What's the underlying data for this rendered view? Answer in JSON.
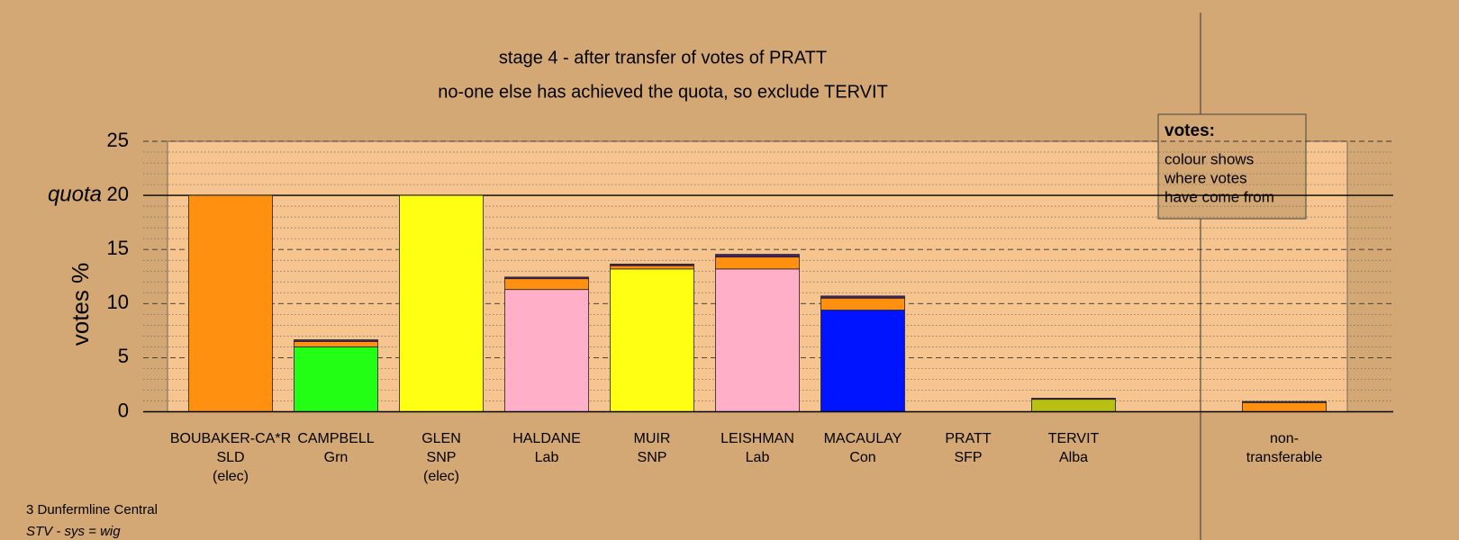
{
  "chart_data": {
    "type": "stacked-bar",
    "title": "stage 4 - after transfer of votes of PRATT",
    "subtitle": "no-one else has achieved the quota, so exclude TERVIT",
    "ylabel": "votes %",
    "categories": [
      [
        "BOUBAKER-CA*R",
        "SLD",
        "(elec)"
      ],
      [
        "CAMPBELL",
        "Grn"
      ],
      [
        "GLEN",
        "SNP",
        "(elec)"
      ],
      [
        "HALDANE",
        "Lab"
      ],
      [
        "MUIR",
        "SNP"
      ],
      [
        "LEISHMAN",
        "Lab"
      ],
      [
        "MACAULAY",
        "Con"
      ],
      [
        "PRATT",
        "SFP"
      ],
      [
        "TERVIT",
        "Alba"
      ],
      [
        "non-",
        "transferable"
      ]
    ],
    "series": [
      {
        "colors": [
          "#ff9010",
          "#22ff14",
          "#ffff14",
          "#ffb0c8",
          "#ffff14",
          "#ffb0c8",
          "#0014ff",
          "#6a2b80",
          "#b8c014",
          "#ff9010"
        ],
        "values": [
          20,
          6.0,
          20,
          11.3,
          13.2,
          13.2,
          9.4,
          0,
          1.15,
          0
        ]
      },
      {
        "color": "#ff9010",
        "values": [
          0,
          0.5,
          0,
          1.0,
          0.3,
          1.1,
          1.1,
          0,
          0,
          0.85
        ]
      },
      {
        "color": "#4a1f6a",
        "values": [
          0,
          0.15,
          0,
          0.15,
          0.15,
          0.25,
          0.2,
          0,
          0.1,
          0.1
        ]
      }
    ],
    "ylim": [
      0,
      25
    ],
    "yticks": [
      0,
      5,
      10,
      15,
      20,
      25
    ],
    "minor_yticks": [
      1,
      2,
      3,
      4,
      6,
      7,
      8,
      9,
      11,
      12,
      13,
      14,
      16,
      17,
      18,
      19,
      21,
      22,
      23,
      24
    ],
    "quota": {
      "value": 20,
      "label": "quota"
    },
    "grid": true,
    "legend_box": {
      "title": "votes:",
      "text": [
        "colour shows",
        "where votes",
        "have come from"
      ]
    },
    "footnotes": [
      "3 Dunfermline Central",
      "STV - sys = wig"
    ]
  }
}
